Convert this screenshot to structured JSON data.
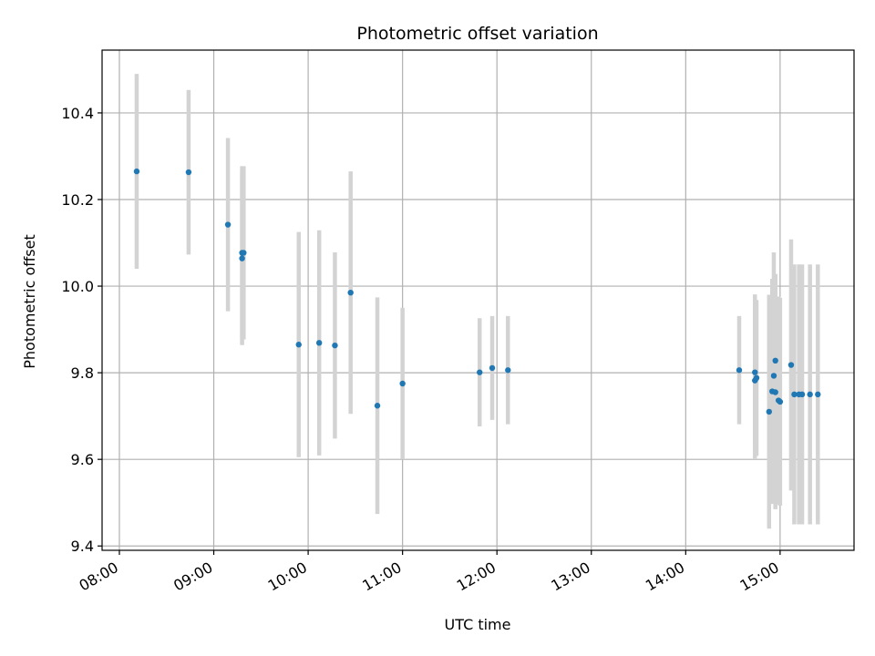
{
  "chart_data": {
    "type": "scatter",
    "title": "Photometric offset variation",
    "xlabel": "UTC time",
    "ylabel": "Photometric offset",
    "x_ticks": [
      "08:00",
      "09:00",
      "10:00",
      "11:00",
      "12:00",
      "13:00",
      "14:00",
      "15:00"
    ],
    "y_ticks": [
      "9.4",
      "9.6",
      "9.8",
      "10.0",
      "10.2",
      "10.4"
    ],
    "xlim": [
      "07:49",
      "15:47"
    ],
    "ylim": [
      9.39,
      10.545
    ],
    "grid": true,
    "colors": {
      "marker": "#1f77b4",
      "errorbar": "#d3d3d3",
      "grid": "#b0b0b0"
    },
    "series": [
      {
        "x": [
          "08:11",
          "08:44",
          "09:09",
          "09:18",
          "09:18",
          "09:19",
          "09:54",
          "10:07",
          "10:17",
          "10:27",
          "10:44",
          "11:00",
          "11:49",
          "11:57",
          "12:07",
          "14:34",
          "14:44",
          "14:44",
          "14:45",
          "14:53",
          "14:55",
          "14:56",
          "14:57",
          "14:57",
          "14:59",
          "15:00",
          "15:07",
          "15:09",
          "15:12",
          "15:14",
          "15:19",
          "15:24"
        ],
        "y": [
          10.265,
          10.263,
          10.142,
          10.077,
          10.064,
          10.077,
          9.865,
          9.869,
          9.863,
          9.985,
          9.724,
          9.775,
          9.801,
          9.811,
          9.806,
          9.806,
          9.801,
          9.782,
          9.788,
          9.71,
          9.757,
          9.793,
          9.755,
          9.828,
          9.736,
          9.733,
          9.818,
          9.75,
          9.75,
          9.75,
          9.75,
          9.75
        ],
        "yerr": [
          0.225,
          0.19,
          0.2,
          0.2,
          0.2,
          0.2,
          0.26,
          0.26,
          0.215,
          0.28,
          0.25,
          0.175,
          0.125,
          0.12,
          0.125,
          0.125,
          0.18,
          0.18,
          0.18,
          0.27,
          0.26,
          0.285,
          0.27,
          0.2,
          0.24,
          0.24,
          0.29,
          0.3,
          0.3,
          0.3,
          0.3,
          0.3
        ]
      }
    ]
  }
}
